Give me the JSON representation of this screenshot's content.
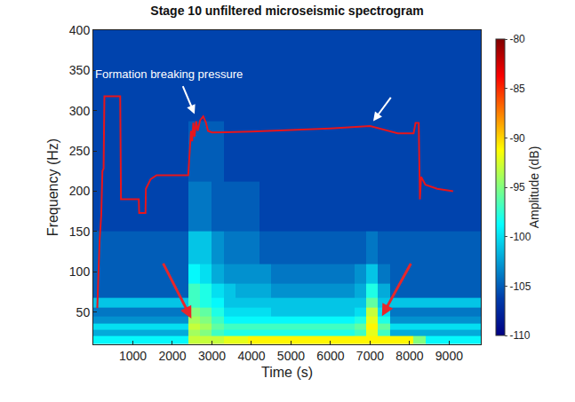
{
  "chart_data": {
    "type": "heatmap",
    "title": "Stage 10 unfiltered microseismic spectrogram",
    "x_label": "Time (s)",
    "y_label": "Frequency (Hz)",
    "xlim": [
      0,
      9800
    ],
    "xticks": [
      1000,
      2000,
      3000,
      4000,
      5000,
      6000,
      7000,
      8000,
      9000
    ],
    "ylim": [
      10,
      400
    ],
    "yticks": [
      50,
      100,
      150,
      200,
      250,
      300,
      350,
      400
    ],
    "grid": false,
    "x": [
      150,
      450,
      750,
      1050,
      1350,
      1650,
      1950,
      2250,
      2550,
      2850,
      3150,
      3450,
      3750,
      4050,
      4350,
      4650,
      4950,
      5250,
      5550,
      5850,
      6150,
      6450,
      6750,
      7050,
      7350,
      7650,
      7950,
      8250,
      8550,
      8850,
      9150,
      9450,
      9750
    ],
    "y": [
      15,
      25,
      32,
      40,
      50,
      61,
      75,
      95,
      125,
      175,
      250,
      325,
      390
    ],
    "z": [
      [
        -99,
        -99,
        -99,
        -99,
        -99,
        -99,
        -99,
        -99,
        -93,
        -93,
        -93,
        -92,
        -92,
        -91,
        -91,
        -91,
        -91,
        -91,
        -91,
        -91,
        -91,
        -91,
        -91,
        -91,
        -91,
        -91,
        -91,
        -95,
        -99,
        -99,
        -99,
        -99,
        -99
      ],
      [
        -102,
        -102,
        -102,
        -102,
        -102,
        -102,
        -102,
        -102,
        -94,
        -95,
        -97,
        -98,
        -98,
        -98,
        -98,
        -98,
        -98,
        -98,
        -98,
        -98,
        -98,
        -98,
        -97,
        -92,
        -97,
        -102,
        -102,
        -102,
        -102,
        -102,
        -102,
        -102,
        -102
      ],
      [
        -100,
        -100,
        -100,
        -100,
        -100,
        -100,
        -100,
        -100,
        -93,
        -94,
        -96,
        -97,
        -97,
        -97,
        -97,
        -97,
        -97,
        -97,
        -97,
        -97,
        -97,
        -97,
        -96,
        -91,
        -96,
        -100,
        -100,
        -100,
        -100,
        -100,
        -100,
        -100,
        -100
      ],
      [
        -103,
        -103,
        -103,
        -103,
        -103,
        -103,
        -103,
        -103,
        -94,
        -95,
        -97,
        -99,
        -99,
        -99,
        -99,
        -99,
        -99,
        -99,
        -99,
        -99,
        -99,
        -99,
        -98,
        -92,
        -98,
        -103,
        -103,
        -103,
        -103,
        -103,
        -103,
        -103,
        -103
      ],
      [
        -104,
        -104,
        -104,
        -104,
        -104,
        -104,
        -104,
        -104,
        -95,
        -96,
        -98,
        -100,
        -100,
        -100,
        -100,
        -101,
        -101,
        -101,
        -101,
        -101,
        -101,
        -101,
        -100,
        -93,
        -100,
        -104,
        -104,
        -104,
        -104,
        -104,
        -104,
        -104,
        -104
      ],
      [
        -101,
        -101,
        -101,
        -101,
        -101,
        -101,
        -101,
        -101,
        -97,
        -98,
        -99,
        -101,
        -101,
        -101,
        -101,
        -101,
        -101,
        -101,
        -101,
        -101,
        -101,
        -101,
        -101,
        -96,
        -101,
        -101,
        -101,
        -101,
        -101,
        -101,
        -101,
        -101,
        -101
      ],
      [
        -105,
        -105,
        -105,
        -105,
        -105,
        -105,
        -105,
        -105,
        -97,
        -98,
        -100,
        -101,
        -102,
        -102,
        -102,
        -103,
        -103,
        -103,
        -103,
        -103,
        -103,
        -103,
        -102,
        -98,
        -102,
        -105,
        -105,
        -105,
        -105,
        -105,
        -105,
        -105,
        -105
      ],
      [
        -105,
        -105,
        -105,
        -105,
        -105,
        -105,
        -105,
        -105,
        -99,
        -100,
        -102,
        -103,
        -103,
        -103,
        -103,
        -104,
        -104,
        -104,
        -104,
        -104,
        -104,
        -104,
        -103,
        -101,
        -104,
        -105,
        -105,
        -105,
        -105,
        -105,
        -105,
        -105,
        -105
      ],
      [
        -105,
        -105,
        -105,
        -105,
        -105,
        -105,
        -105,
        -105,
        -101,
        -101,
        -103,
        -104,
        -104,
        -104,
        -105,
        -105,
        -105,
        -105,
        -105,
        -105,
        -105,
        -105,
        -105,
        -104,
        -105,
        -105,
        -105,
        -105,
        -105,
        -105,
        -105,
        -105,
        -105
      ],
      [
        -106,
        -106,
        -106,
        -106,
        -106,
        -106,
        -106,
        -106,
        -104,
        -104,
        -105,
        -105,
        -105,
        -105,
        -106,
        -106,
        -106,
        -106,
        -106,
        -106,
        -106,
        -106,
        -106,
        -106,
        -106,
        -106,
        -106,
        -106,
        -106,
        -106,
        -106,
        -106,
        -106
      ],
      [
        -106,
        -106,
        -106,
        -106,
        -106,
        -106,
        -106,
        -106,
        -105,
        -105,
        -105,
        -106,
        -106,
        -106,
        -106,
        -106,
        -106,
        -106,
        -106,
        -106,
        -106,
        -106,
        -106,
        -106,
        -106,
        -106,
        -106,
        -106,
        -106,
        -106,
        -106,
        -106,
        -106
      ],
      [
        -106,
        -106,
        -106,
        -106,
        -106,
        -106,
        -106,
        -106,
        -106,
        -106,
        -106,
        -106,
        -106,
        -106,
        -106,
        -106,
        -106,
        -106,
        -106,
        -106,
        -106,
        -106,
        -106,
        -106,
        -106,
        -106,
        -106,
        -106,
        -106,
        -106,
        -106,
        -106,
        -106
      ],
      [
        -106,
        -106,
        -106,
        -106,
        -106,
        -106,
        -106,
        -106,
        -106,
        -106,
        -106,
        -106,
        -106,
        -106,
        -106,
        -106,
        -106,
        -106,
        -106,
        -106,
        -106,
        -106,
        -106,
        -106,
        -106,
        -106,
        -106,
        -106,
        -106,
        -106,
        -106,
        -106,
        -106
      ]
    ],
    "colorbar": {
      "title": "Amplitude (dB)",
      "range": [
        -110,
        -80
      ],
      "ticks": [
        -110,
        -105,
        -100,
        -95,
        -90,
        -85,
        -80
      ]
    },
    "overlay": {
      "type": "line",
      "color": "#e8151b",
      "x": [
        100,
        150,
        160,
        200,
        230,
        260,
        280,
        680,
        700,
        1150,
        1160,
        1320,
        1330,
        1450,
        1600,
        2400,
        2440,
        2470,
        2500,
        2530,
        2560,
        2600,
        2640,
        2700,
        2780,
        2850,
        2900,
        3000,
        4000,
        5000,
        6000,
        7000,
        7300,
        7700,
        8100,
        8150,
        8230,
        8260,
        8290,
        8400,
        8700,
        9100
      ],
      "y": [
        55,
        130,
        140,
        170,
        225,
        228,
        318,
        318,
        190,
        190,
        173,
        173,
        203,
        215,
        220,
        220,
        250,
        275,
        262,
        285,
        268,
        287,
        275,
        288,
        293,
        285,
        275,
        273,
        274,
        276,
        278,
        281,
        277,
        272,
        272,
        285,
        285,
        190,
        218,
        208,
        203,
        200
      ]
    },
    "annotations": [
      {
        "text": "Formation breaking pressure",
        "x": 1900,
        "y": 345,
        "color": "#ffffff"
      }
    ],
    "arrows": [
      {
        "x": 2560,
        "y": 296,
        "from_x": 2250,
        "from_y": 332,
        "color": "#ffffff"
      },
      {
        "x": 7080,
        "y": 287,
        "from_x": 7550,
        "from_y": 318,
        "color": "#ffffff"
      },
      {
        "x": 2480,
        "y": 42,
        "from_x": 1750,
        "from_y": 112,
        "color": "#e8262a"
      },
      {
        "x": 7300,
        "y": 45,
        "from_x": 8050,
        "from_y": 112,
        "color": "#e8262a"
      }
    ]
  }
}
